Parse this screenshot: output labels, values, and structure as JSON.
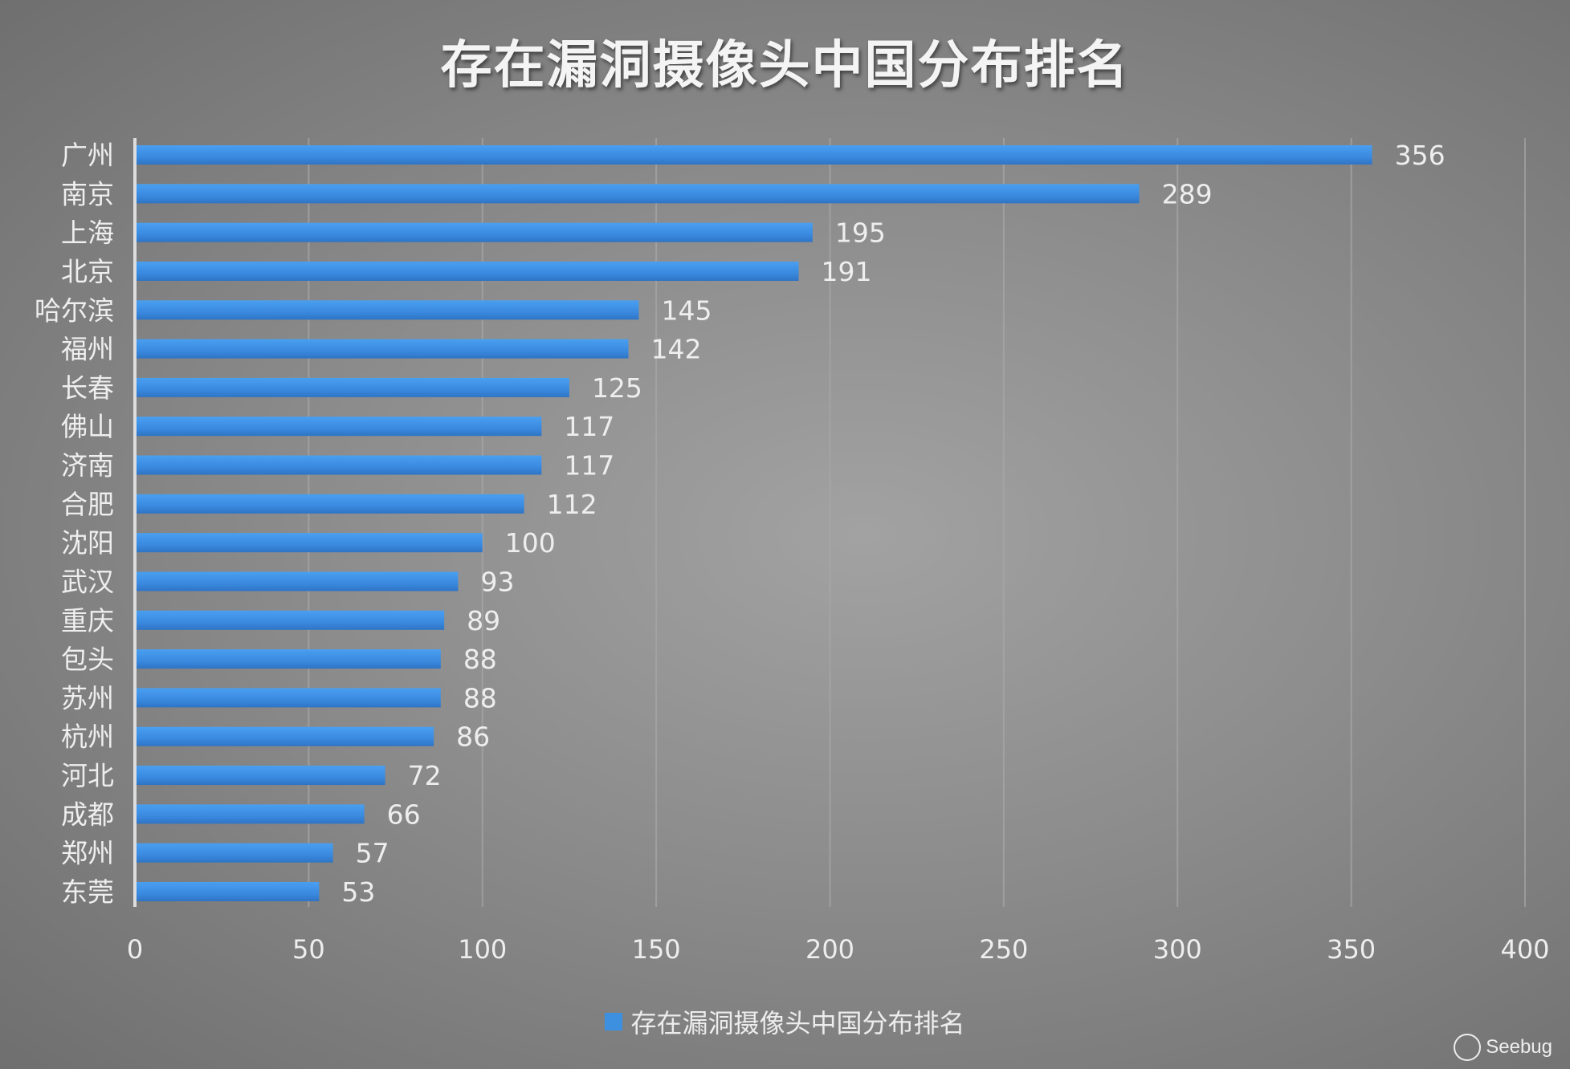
{
  "chart_data": {
    "type": "bar",
    "orientation": "horizontal",
    "title": "存在漏洞摄像头中国分布排名",
    "categories": [
      "广州",
      "南京",
      "上海",
      "北京",
      "哈尔滨",
      "福州",
      "长春",
      "佛山",
      "济南",
      "合肥",
      "沈阳",
      "武汉",
      "重庆",
      "包头",
      "苏州",
      "杭州",
      "河北",
      "成都",
      "郑州",
      "东莞"
    ],
    "values": [
      356,
      289,
      195,
      191,
      145,
      142,
      125,
      117,
      117,
      112,
      100,
      93,
      89,
      88,
      88,
      86,
      72,
      66,
      57,
      53
    ],
    "xlim": [
      0,
      400
    ],
    "xticks": [
      "0",
      "50",
      "100",
      "150",
      "200",
      "250",
      "300",
      "350",
      "400"
    ],
    "legend": "存在漏洞摄像头中国分布排名",
    "legend_position": "bottom",
    "grid": true,
    "bar_color": "#3d8fe0"
  },
  "watermark": "Seebug"
}
